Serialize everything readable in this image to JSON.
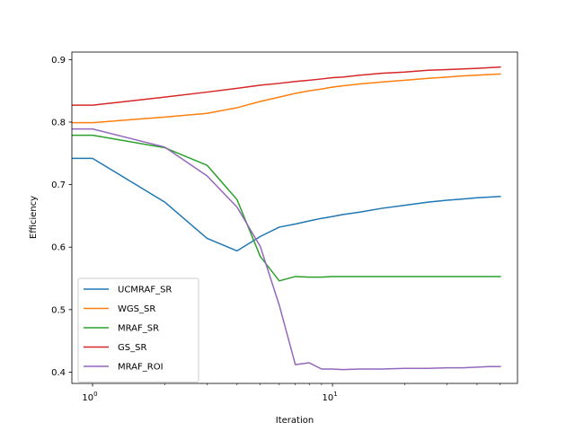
{
  "chart_data": {
    "type": "line",
    "xlabel": "Iteration",
    "ylabel": "Efficiency",
    "xscale": "log",
    "xlim": [
      0.82,
      59
    ],
    "ylim": [
      0.382,
      0.912
    ],
    "x_ticks": [
      {
        "value": 1,
        "base": "10",
        "exp": "0"
      },
      {
        "value": 10,
        "base": "10",
        "exp": "1"
      }
    ],
    "y_ticks": [
      0.4,
      0.5,
      0.6,
      0.7,
      0.8,
      0.9
    ],
    "y_tick_labels": [
      "0.4",
      "0.5",
      "0.6",
      "0.7",
      "0.8",
      "0.9"
    ],
    "grid": false,
    "legend_position": "lower-left",
    "x": [
      0.8,
      1,
      2,
      3,
      4,
      5,
      6,
      7,
      8,
      9,
      10,
      11,
      13,
      16,
      20,
      25,
      30,
      35,
      40,
      45,
      50
    ],
    "series": [
      {
        "name": "UCMRAF_SR",
        "color": "#1f77b4",
        "values": [
          0.742,
          0.742,
          0.672,
          0.614,
          0.594,
          0.617,
          0.632,
          0.637,
          0.642,
          0.646,
          0.649,
          0.652,
          0.656,
          0.662,
          0.667,
          0.672,
          0.675,
          0.677,
          0.679,
          0.68,
          0.681
        ]
      },
      {
        "name": "WGS_SR",
        "color": "#ff7f0e",
        "values": [
          0.799,
          0.799,
          0.808,
          0.814,
          0.823,
          0.833,
          0.84,
          0.846,
          0.85,
          0.853,
          0.856,
          0.858,
          0.861,
          0.864,
          0.867,
          0.87,
          0.872,
          0.874,
          0.875,
          0.876,
          0.877
        ]
      },
      {
        "name": "MRAF_SR",
        "color": "#2ca02c",
        "values": [
          0.779,
          0.779,
          0.759,
          0.731,
          0.676,
          0.585,
          0.546,
          0.553,
          0.552,
          0.552,
          0.553,
          0.553,
          0.553,
          0.553,
          0.553,
          0.553,
          0.553,
          0.553,
          0.553,
          0.553,
          0.553
        ]
      },
      {
        "name": "GS_SR",
        "color": "#d62728",
        "values": [
          0.827,
          0.827,
          0.84,
          0.848,
          0.854,
          0.859,
          0.862,
          0.865,
          0.867,
          0.869,
          0.871,
          0.872,
          0.875,
          0.878,
          0.88,
          0.883,
          0.884,
          0.885,
          0.886,
          0.887,
          0.888
        ]
      },
      {
        "name": "MRAF_ROI",
        "color": "#9467bd",
        "values": [
          0.789,
          0.789,
          0.76,
          0.714,
          0.664,
          0.601,
          0.507,
          0.412,
          0.415,
          0.405,
          0.405,
          0.404,
          0.405,
          0.405,
          0.406,
          0.406,
          0.407,
          0.407,
          0.408,
          0.409,
          0.409
        ]
      }
    ]
  }
}
